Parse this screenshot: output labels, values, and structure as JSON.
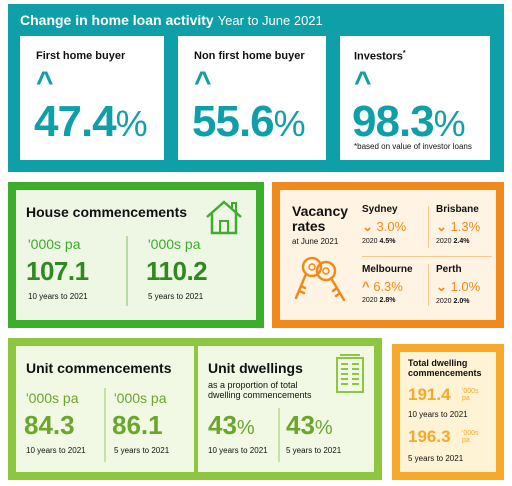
{
  "loan": {
    "title": "Change in home loan activity",
    "subtitle": "Year to June 2021",
    "cards": [
      {
        "label": "First home buyer",
        "value": "47.4",
        "unit": "%"
      },
      {
        "label": "Non first home buyer",
        "value": "55.6",
        "unit": "%"
      },
      {
        "label": "Investors",
        "label_mark": "*",
        "value": "98.3",
        "unit": "%",
        "note": "*based on value of investor loans"
      }
    ],
    "arrow": "^"
  },
  "house": {
    "title": "House commencements",
    "left": {
      "label": "'000s pa",
      "value": "107.1",
      "period": "10 years to 2021"
    },
    "right": {
      "label": "'000s pa",
      "value": "110.2",
      "period": "5 years to 2021"
    }
  },
  "vacancy": {
    "title": "Vacancy rates",
    "subtitle": "at June 2021",
    "cities": [
      {
        "name": "Sydney",
        "dir": "down",
        "value": "3.0%",
        "prev_label": "2020",
        "prev": "4.5%"
      },
      {
        "name": "Brisbane",
        "dir": "down",
        "value": "1.3%",
        "prev_label": "2020",
        "prev": "2.4%"
      },
      {
        "name": "Melbourne",
        "dir": "up",
        "value": "6.3%",
        "prev_label": "2020",
        "prev": "2.8%"
      },
      {
        "name": "Perth",
        "dir": "down",
        "value": "1.0%",
        "prev_label": "2020",
        "prev": "2.0%"
      }
    ]
  },
  "units": {
    "title": "Unit commencements",
    "left": {
      "label": "'000s pa",
      "value": "84.3",
      "period": "10 years to 2021"
    },
    "right": {
      "label": "'000s pa",
      "value": "86.1",
      "period": "5 years to 2021"
    }
  },
  "dwellings": {
    "title": "Unit dwellings",
    "subtitle": "as a proportion of total dwelling commencements",
    "left": {
      "value": "43",
      "unit": "%",
      "period": "10 years to 2021"
    },
    "right": {
      "value": "43",
      "unit": "%",
      "period": "5 years to 2021"
    }
  },
  "total": {
    "title": "Total dwelling commencements",
    "rows": [
      {
        "value": "191.4",
        "unit": "'000s pa",
        "period": "10 years to 2021"
      },
      {
        "value": "196.3",
        "unit": "'000s pa",
        "period": "5 years to 2021"
      }
    ]
  },
  "colors": {
    "teal": "#0f9fa8",
    "green": "#3dae2b",
    "orange": "#f08a1c",
    "light_green": "#8dc63f",
    "yellow": "#f6a92a"
  },
  "icons": [
    "house-icon",
    "keys-icon",
    "apartment-building-icon"
  ]
}
